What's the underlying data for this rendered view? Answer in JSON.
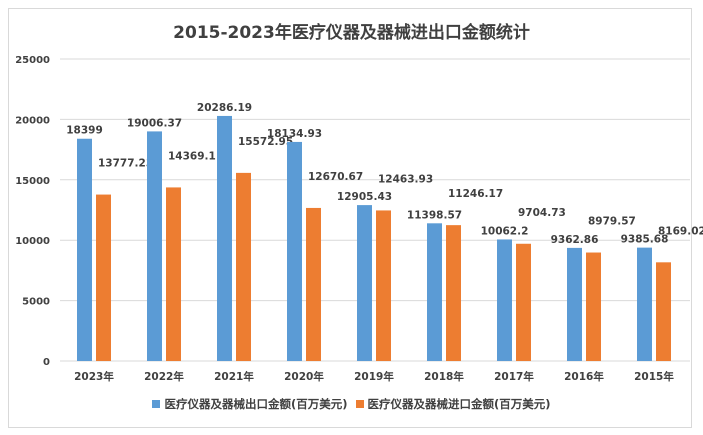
{
  "chart_data": {
    "type": "bar",
    "title": "2015-2023年医疗仪器及器械进出口金额统计",
    "categories": [
      "2023年",
      "2022年",
      "2021年",
      "2020年",
      "2019年",
      "2018年",
      "2017年",
      "2016年",
      "2015年"
    ],
    "series": [
      {
        "name": "医疗仪器及器械出口金额(百万美元)",
        "color": "#5b9bd5",
        "values": [
          18399,
          19006.37,
          20286.19,
          18134.93,
          12905.43,
          11398.57,
          10062.2,
          9362.86,
          9385.68
        ],
        "labels": [
          "18399",
          "19006.37",
          "20286.19",
          "18134.93",
          "12905.43",
          "11398.57",
          "10062.2",
          "9362.86",
          "9385.68"
        ]
      },
      {
        "name": "医疗仪器及器械进口金额(百万美元)",
        "color": "#ed7d31",
        "values": [
          13777.23,
          14369.1,
          15572.95,
          12670.67,
          12463.93,
          11246.17,
          9704.73,
          8979.57,
          8169.02
        ],
        "labels": [
          "13777.23",
          "14369.1",
          "15572.95",
          "12670.67",
          "12463.93",
          "11246.17",
          "9704.73",
          "8979.57",
          "8169.02"
        ]
      }
    ],
    "yticks": [
      "0",
      "5000",
      "10000",
      "15000",
      "20000",
      "25000"
    ],
    "ylim": [
      0,
      25000
    ],
    "grid": true,
    "legend": "bottom"
  }
}
